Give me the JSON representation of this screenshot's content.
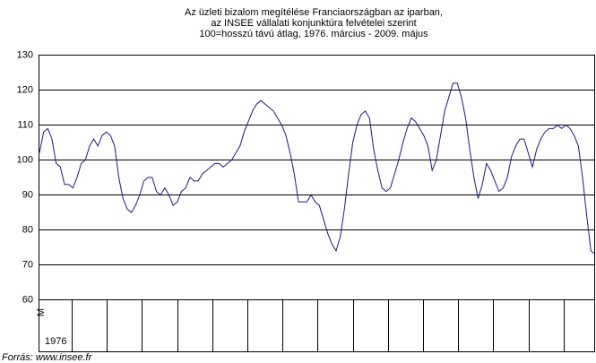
{
  "chart_data": {
    "type": "line",
    "title": [
      "Az üzleti bizalom megítélése Franciaországban az iparban,",
      "az INSEE vállalati konjunktúra felvételei szerint",
      "100=hosszú távú átlag, 1976. március - 2009. május"
    ],
    "categories": [
      "M",
      null,
      null,
      null,
      null,
      null,
      null,
      null,
      null,
      null,
      null,
      null,
      null,
      null,
      null,
      null,
      null,
      null,
      null,
      null,
      null,
      null,
      null,
      null,
      null,
      null,
      null,
      null,
      null,
      null,
      null,
      null,
      null,
      null,
      null,
      null,
      null,
      null,
      null,
      null,
      null,
      null,
      null,
      null,
      null,
      null,
      null,
      null,
      null,
      null,
      null,
      null,
      null,
      null,
      null,
      null,
      null,
      null,
      null,
      null,
      null,
      null,
      null,
      null,
      null,
      null,
      null,
      null,
      null,
      null,
      null,
      null,
      null,
      null,
      null,
      null,
      null,
      null,
      null,
      null,
      null,
      null,
      null,
      null,
      null,
      null,
      null,
      null,
      null,
      null,
      null,
      null,
      null,
      null,
      null,
      null,
      null,
      null,
      null,
      null,
      null,
      null,
      null,
      null,
      null,
      null,
      null,
      null,
      null,
      null,
      null,
      null,
      null,
      null,
      null,
      null,
      null,
      null,
      null,
      null,
      null,
      null,
      null,
      null,
      null,
      null,
      null,
      null,
      null,
      null,
      null,
      null,
      null,
      null
    ],
    "year_label": "1976",
    "series": [
      {
        "color": "#1a1a80",
        "values": [
          102,
          108,
          109,
          106,
          99,
          98,
          93,
          93,
          92,
          95,
          99,
          100,
          104,
          106,
          104,
          107,
          108,
          107,
          104,
          95,
          89,
          86,
          85,
          87,
          90,
          94,
          95,
          95,
          91,
          90,
          92,
          90,
          87,
          88,
          91,
          92,
          95,
          94,
          94,
          96,
          97,
          98,
          99,
          99,
          98,
          99,
          100,
          102,
          104,
          108,
          111,
          114,
          116,
          117,
          116,
          115,
          114,
          112,
          110,
          107,
          102,
          96,
          88,
          88,
          88,
          90,
          88,
          87,
          83,
          79,
          76,
          74,
          78,
          86,
          96,
          105,
          110,
          113,
          114,
          112,
          103,
          97,
          92,
          91,
          92,
          96,
          100,
          105,
          109,
          112,
          111,
          109,
          107,
          104,
          97,
          100,
          107,
          114,
          118,
          122,
          122,
          118,
          112,
          103,
          95,
          89,
          93,
          99,
          97,
          94,
          91,
          92,
          95,
          101,
          104,
          106,
          106,
          102,
          98,
          103,
          106,
          108,
          109,
          109,
          110,
          109,
          110,
          109,
          107,
          104,
          95,
          84,
          74,
          73
        ]
      }
    ],
    "ylim": [
      60,
      130
    ],
    "yticks": [
      60,
      70,
      80,
      90,
      100,
      110,
      120,
      130
    ],
    "grid": true,
    "source": "Forrás: www.insee.fr"
  }
}
